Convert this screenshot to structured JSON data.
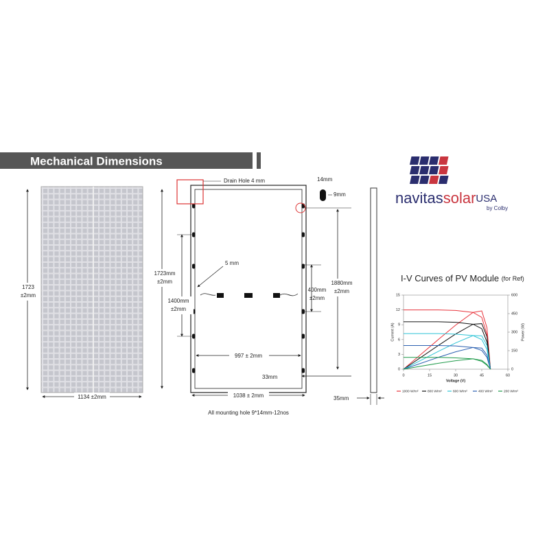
{
  "header": {
    "title": "Mechanical Dimensions"
  },
  "logo": {
    "brand": "navitas",
    "brand_accent": "solar",
    "region": "USA",
    "byline": "by Colby"
  },
  "front_view": {
    "height": [
      "1723",
      "±2mm"
    ],
    "width": "1134 ±2mm"
  },
  "back_view": {
    "drain_hole": "Drain Hole 4 mm",
    "slot_width": "14mm",
    "slot_height": "9mm",
    "height": [
      "1723mm",
      "±2mm"
    ],
    "hole_size": "5 mm",
    "hole_spacing_long": [
      "1400mm",
      "±2mm"
    ],
    "hole_spacing_short": [
      "400mm",
      "±2mm"
    ],
    "rail_length": [
      "1880mm",
      "±2mm"
    ],
    "inner_width": "997 ± 2mm",
    "edge_offset": "33mm",
    "outer_width": "1038 ± 2mm",
    "note": "All mounting hole 9*14mm-12nos"
  },
  "side_view": {
    "thickness": "35mm"
  },
  "iv_chart": {
    "title": "I-V Curves of PV Module",
    "subtitle": "(for Ref)",
    "x_label": "Voltage (V)",
    "y_label": "Current (A)",
    "y2_label": "Power (W)",
    "x": [
      0,
      10,
      20,
      30,
      40,
      45,
      48,
      50
    ],
    "xlim": [
      0,
      60
    ],
    "xticks": [
      0,
      15,
      30,
      45,
      60
    ],
    "ylim": [
      0,
      15
    ],
    "yticks": [
      0,
      3,
      6,
      9,
      12,
      15
    ],
    "y2lim": [
      0,
      600
    ],
    "y2ticks": [
      0,
      150,
      300,
      450,
      600
    ],
    "series": [
      {
        "name": "1000 W/m²",
        "color": "#e8333b",
        "current": [
          12,
          12,
          12,
          11.9,
          11.5,
          10.5,
          7,
          0
        ],
        "power": [
          0,
          120,
          240,
          357,
          460,
          472,
          336,
          0
        ]
      },
      {
        "name": "800 W/m²",
        "color": "#111111",
        "current": [
          9.6,
          9.6,
          9.6,
          9.5,
          9.1,
          8.2,
          5.5,
          0
        ],
        "power": [
          0,
          96,
          192,
          285,
          364,
          369,
          264,
          0
        ]
      },
      {
        "name": "600 W/m²",
        "color": "#2ec4d6",
        "current": [
          7.2,
          7.2,
          7.2,
          7.1,
          6.8,
          6,
          4,
          0
        ],
        "power": [
          0,
          72,
          144,
          213,
          272,
          270,
          192,
          0
        ]
      },
      {
        "name": "400 W/m²",
        "color": "#2a5fb0",
        "current": [
          4.8,
          4.8,
          4.8,
          4.7,
          4.4,
          3.8,
          2.4,
          0
        ],
        "power": [
          0,
          48,
          96,
          141,
          176,
          171,
          115,
          0
        ]
      },
      {
        "name": "200 W/m²",
        "color": "#1f9a4a",
        "current": [
          2.4,
          2.4,
          2.4,
          2.3,
          2.1,
          1.6,
          0.8,
          0
        ],
        "power": [
          0,
          24,
          48,
          69,
          84,
          72,
          38,
          0
        ]
      }
    ]
  }
}
